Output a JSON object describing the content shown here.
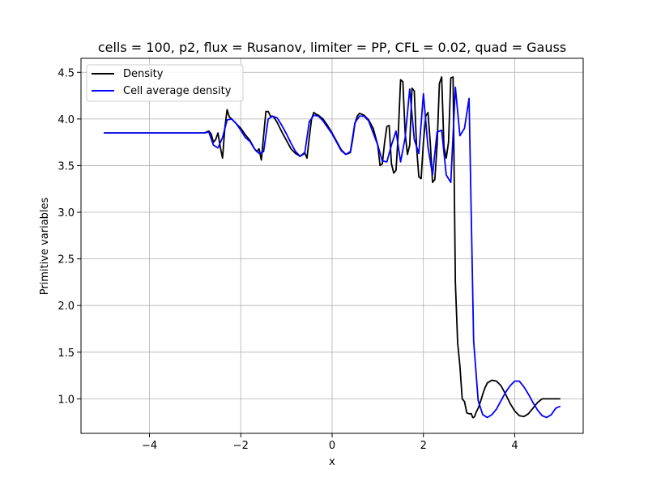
{
  "chart_data": {
    "type": "line",
    "title": "cells = 100, p2, flux = Rusanov, limiter = PP, CFL = 0.02, quad = Gauss",
    "xlabel": "x",
    "ylabel": "Primitive variables",
    "xlim": [
      -5.5,
      5.5
    ],
    "ylim": [
      0.63,
      4.65
    ],
    "xticks": [
      -4,
      -2,
      0,
      2,
      4
    ],
    "yticks": [
      1.0,
      1.5,
      2.0,
      2.5,
      3.0,
      3.5,
      4.0,
      4.5
    ],
    "grid": true,
    "legend": "top-left",
    "series": [
      {
        "name": "Density",
        "color": "#000000",
        "x": [
          -5.0,
          -4.0,
          -3.0,
          -2.8,
          -2.7,
          -2.65,
          -2.6,
          -2.55,
          -2.5,
          -2.45,
          -2.4,
          -2.35,
          -2.3,
          -2.25,
          -2.2,
          -2.1,
          -2.0,
          -1.9,
          -1.8,
          -1.7,
          -1.65,
          -1.6,
          -1.55,
          -1.5,
          -1.45,
          -1.4,
          -1.35,
          -1.3,
          -1.25,
          -1.2,
          -1.1,
          -1.0,
          -0.9,
          -0.8,
          -0.7,
          -0.6,
          -0.55,
          -0.5,
          -0.45,
          -0.4,
          -0.35,
          -0.3,
          -0.2,
          -0.1,
          0.0,
          0.1,
          0.2,
          0.3,
          0.4,
          0.45,
          0.5,
          0.55,
          0.6,
          0.65,
          0.7,
          0.8,
          0.9,
          1.0,
          1.05,
          1.1,
          1.15,
          1.2,
          1.25,
          1.3,
          1.35,
          1.4,
          1.45,
          1.5,
          1.55,
          1.6,
          1.65,
          1.7,
          1.75,
          1.8,
          1.85,
          1.9,
          1.95,
          2.0,
          2.05,
          2.1,
          2.15,
          2.2,
          2.25,
          2.3,
          2.35,
          2.4,
          2.45,
          2.5,
          2.55,
          2.6,
          2.65,
          2.7,
          2.75,
          2.8,
          2.85,
          2.9,
          2.95,
          3.0,
          3.05,
          3.08,
          3.1,
          3.12,
          3.15,
          3.2,
          3.25,
          3.3,
          3.35,
          3.4,
          3.5,
          3.6,
          3.7,
          3.8,
          3.9,
          4.0,
          4.1,
          4.2,
          4.3,
          4.4,
          4.5,
          4.6,
          4.7,
          4.8,
          4.9,
          5.0
        ],
        "values": [
          3.85,
          3.85,
          3.85,
          3.85,
          3.87,
          3.84,
          3.75,
          3.78,
          3.85,
          3.7,
          3.58,
          3.9,
          4.1,
          4.02,
          4.0,
          3.95,
          3.9,
          3.83,
          3.77,
          3.68,
          3.65,
          3.68,
          3.56,
          3.82,
          4.08,
          4.08,
          4.03,
          4.03,
          4.0,
          3.96,
          3.86,
          3.77,
          3.68,
          3.63,
          3.6,
          3.64,
          3.58,
          3.8,
          4.0,
          4.07,
          4.05,
          4.04,
          4.0,
          3.93,
          3.85,
          3.76,
          3.67,
          3.62,
          3.64,
          3.78,
          3.95,
          4.03,
          4.06,
          4.05,
          4.04,
          3.99,
          3.9,
          3.72,
          3.5,
          3.52,
          3.75,
          3.92,
          3.93,
          3.52,
          3.42,
          3.45,
          3.85,
          4.42,
          4.4,
          3.85,
          3.62,
          3.72,
          4.33,
          4.3,
          3.7,
          3.38,
          3.36,
          3.75,
          4.03,
          4.07,
          3.75,
          3.32,
          3.35,
          3.72,
          4.38,
          4.45,
          3.7,
          3.58,
          3.75,
          4.44,
          4.45,
          2.25,
          1.6,
          1.35,
          1.0,
          0.97,
          0.85,
          0.84,
          0.84,
          0.8,
          0.8,
          0.81,
          0.85,
          0.9,
          0.97,
          1.05,
          1.12,
          1.17,
          1.2,
          1.19,
          1.14,
          1.05,
          0.95,
          0.87,
          0.82,
          0.81,
          0.84,
          0.9,
          0.96,
          1.0,
          1.0,
          1.0,
          1.0,
          1.0
        ]
      },
      {
        "name": "Cell average density",
        "color": "#0000ff",
        "x": [
          -5.0,
          -4.0,
          -3.0,
          -2.8,
          -2.7,
          -2.6,
          -2.5,
          -2.4,
          -2.3,
          -2.2,
          -2.1,
          -2.0,
          -1.9,
          -1.8,
          -1.7,
          -1.6,
          -1.5,
          -1.4,
          -1.3,
          -1.2,
          -1.1,
          -1.0,
          -0.9,
          -0.8,
          -0.7,
          -0.6,
          -0.5,
          -0.4,
          -0.3,
          -0.2,
          -0.1,
          0.0,
          0.1,
          0.2,
          0.3,
          0.4,
          0.5,
          0.6,
          0.7,
          0.8,
          0.9,
          1.0,
          1.1,
          1.2,
          1.3,
          1.4,
          1.5,
          1.6,
          1.7,
          1.8,
          1.9,
          2.0,
          2.1,
          2.2,
          2.3,
          2.4,
          2.5,
          2.6,
          2.7,
          2.8,
          2.9,
          3.0,
          3.1,
          3.2,
          3.3,
          3.4,
          3.5,
          3.6,
          3.7,
          3.8,
          3.9,
          4.0,
          4.1,
          4.2,
          4.3,
          4.4,
          4.5,
          4.6,
          4.7,
          4.8,
          4.9,
          5.0
        ],
        "values": [
          3.85,
          3.85,
          3.85,
          3.85,
          3.86,
          3.72,
          3.69,
          3.8,
          3.99,
          4.0,
          3.95,
          3.88,
          3.8,
          3.76,
          3.68,
          3.63,
          3.65,
          4.0,
          4.03,
          4.01,
          3.93,
          3.84,
          3.74,
          3.65,
          3.6,
          3.63,
          3.97,
          4.04,
          4.03,
          3.98,
          3.91,
          3.84,
          3.75,
          3.66,
          3.62,
          3.65,
          3.96,
          4.03,
          4.03,
          3.98,
          3.85,
          3.72,
          3.55,
          3.54,
          3.72,
          3.87,
          3.54,
          3.8,
          4.32,
          3.78,
          3.63,
          4.27,
          3.7,
          3.4,
          3.86,
          3.88,
          3.4,
          3.32,
          4.34,
          3.82,
          3.9,
          4.22,
          1.62,
          0.98,
          0.83,
          0.8,
          0.83,
          0.89,
          0.98,
          1.07,
          1.14,
          1.19,
          1.19,
          1.13,
          1.05,
          0.96,
          0.88,
          0.82,
          0.8,
          0.83,
          0.9,
          0.92
        ]
      }
    ]
  }
}
